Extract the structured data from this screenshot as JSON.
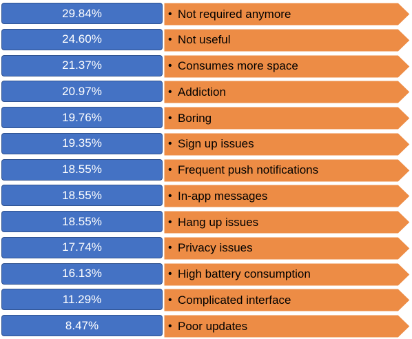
{
  "colors": {
    "percent_box": "#4472c4",
    "percent_border": "#2f528f",
    "arrow_fill": "#ed8c45",
    "arrow_stroke": "#ffffff"
  },
  "items": [
    {
      "percent": "29.84%",
      "reason": "Not required anymore"
    },
    {
      "percent": "24.60%",
      "reason": "Not useful"
    },
    {
      "percent": "21.37%",
      "reason": "Consumes more space"
    },
    {
      "percent": "20.97%",
      "reason": "Addiction"
    },
    {
      "percent": "19.76%",
      "reason": "Boring"
    },
    {
      "percent": "19.35%",
      "reason": "Sign up issues"
    },
    {
      "percent": "18.55%",
      "reason": "Frequent push notifications"
    },
    {
      "percent": "18.55%",
      "reason": "In-app messages"
    },
    {
      "percent": "18.55%",
      "reason": "Hang up issues"
    },
    {
      "percent": "17.74%",
      "reason": "Privacy issues"
    },
    {
      "percent": "16.13%",
      "reason": "High battery consumption"
    },
    {
      "percent": "11.29%",
      "reason": "Complicated interface"
    },
    {
      "percent": "8.47%",
      "reason": "Poor updates"
    }
  ]
}
